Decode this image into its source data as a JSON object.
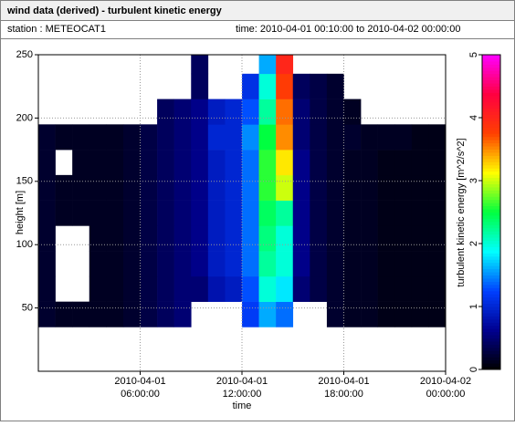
{
  "chart_data": {
    "type": "heatmap",
    "title": "wind data (derived) - turbulent kinetic energy",
    "station": "station : METEOCAT1",
    "period": "time: 2010-04-01 00:10:00 to 2010-04-02 00:00:00",
    "xlabel": "time",
    "ylabel": "height [m]",
    "colorbar_label": "turbulent kinetic energy [m^2/s^2]",
    "xlim": [
      "2010-04-01 00:00:00",
      "2010-04-02 00:00:00"
    ],
    "xticks": [
      "2010-04-01 06:00:00",
      "2010-04-01 12:00:00",
      "2010-04-01 18:00:00",
      "2010-04-02 00:00:00"
    ],
    "ylim": [
      0,
      250
    ],
    "yticks": [
      50,
      100,
      150,
      200,
      250
    ],
    "clim": [
      0,
      5
    ],
    "cticks": [
      0,
      1,
      2,
      3,
      4,
      5
    ],
    "colormap": [
      "#000000",
      "#00008f",
      "#0040ff",
      "#00ffff",
      "#00ff40",
      "#ffff00",
      "#ff4000",
      "#ff0040",
      "#ff00ff"
    ],
    "grid": true,
    "xbins": [
      "2010-04-01 00:00:00",
      "2010-04-01 01:00:00",
      "2010-04-01 02:00:00",
      "2010-04-01 03:00:00",
      "2010-04-01 04:00:00",
      "2010-04-01 05:00:00",
      "2010-04-01 06:00:00",
      "2010-04-01 07:00:00",
      "2010-04-01 08:00:00",
      "2010-04-01 09:00:00",
      "2010-04-01 10:00:00",
      "2010-04-01 11:00:00",
      "2010-04-01 12:00:00",
      "2010-04-01 13:00:00",
      "2010-04-01 14:00:00",
      "2010-04-01 15:00:00",
      "2010-04-01 16:00:00",
      "2010-04-01 17:00:00",
      "2010-04-01 18:00:00",
      "2010-04-01 19:00:00",
      "2010-04-01 20:00:00",
      "2010-04-01 21:00:00",
      "2010-04-01 22:00:00",
      "2010-04-01 23:00:00",
      "2010-04-02 00:00:00"
    ],
    "ybins": [
      35,
      55,
      75,
      95,
      115,
      135,
      155,
      175,
      195,
      215,
      235,
      255
    ],
    "z": [
      [
        0.2,
        0.15,
        0.15,
        0.15,
        0.15,
        0.2,
        0.3,
        0.4,
        0.5,
        null,
        null,
        null,
        1.2,
        1.6,
        1.4,
        null,
        null,
        0.2,
        0.15,
        0.15,
        0.1,
        0.1,
        0.1,
        0.1
      ],
      [
        0.2,
        null,
        null,
        0.15,
        0.15,
        0.2,
        0.3,
        0.4,
        0.5,
        0.5,
        0.8,
        0.9,
        1.3,
        2.0,
        1.8,
        0.5,
        0.3,
        0.2,
        0.15,
        0.15,
        0.1,
        0.1,
        0.1,
        0.1
      ],
      [
        0.2,
        null,
        null,
        0.15,
        0.15,
        0.2,
        0.3,
        0.4,
        0.5,
        0.6,
        0.9,
        1.0,
        1.4,
        2.2,
        2.0,
        0.6,
        0.3,
        0.2,
        0.15,
        0.15,
        0.1,
        0.1,
        0.1,
        0.1
      ],
      [
        0.2,
        null,
        null,
        0.15,
        0.15,
        0.2,
        0.3,
        0.4,
        0.5,
        0.6,
        0.9,
        1.0,
        1.4,
        2.3,
        2.0,
        0.6,
        0.3,
        0.2,
        0.15,
        0.15,
        0.1,
        0.1,
        0.1,
        0.1
      ],
      [
        0.2,
        0.15,
        0.15,
        0.15,
        0.15,
        0.2,
        0.3,
        0.4,
        0.5,
        0.6,
        0.9,
        1.0,
        1.4,
        2.4,
        2.2,
        0.6,
        0.3,
        0.2,
        0.15,
        0.15,
        0.1,
        0.1,
        0.1,
        0.1
      ],
      [
        0.2,
        0.15,
        0.15,
        0.15,
        0.15,
        0.2,
        0.3,
        0.4,
        0.5,
        0.6,
        0.9,
        1.0,
        1.4,
        2.6,
        3.0,
        0.6,
        0.3,
        0.2,
        0.15,
        0.15,
        0.1,
        0.1,
        0.1,
        0.1
      ],
      [
        0.2,
        null,
        0.15,
        0.15,
        0.15,
        0.2,
        0.3,
        0.4,
        0.5,
        0.6,
        0.9,
        1.0,
        1.4,
        2.6,
        3.2,
        0.6,
        0.3,
        0.2,
        0.15,
        0.15,
        0.1,
        0.1,
        0.1,
        0.1
      ],
      [
        0.2,
        0.15,
        0.15,
        0.15,
        0.15,
        0.2,
        0.3,
        0.4,
        0.5,
        0.6,
        1.0,
        1.0,
        1.5,
        2.5,
        3.5,
        0.5,
        0.3,
        0.2,
        0.2,
        0.15,
        0.15,
        0.15,
        0.1,
        0.1
      ],
      [
        null,
        null,
        null,
        null,
        null,
        null,
        null,
        0.4,
        0.5,
        0.6,
        0.9,
        1.0,
        1.3,
        2.2,
        3.6,
        0.5,
        0.3,
        0.2,
        0.15,
        null,
        null,
        null,
        null,
        null
      ],
      [
        null,
        null,
        null,
        null,
        null,
        null,
        null,
        null,
        null,
        0.4,
        null,
        null,
        1.1,
        2.0,
        3.8,
        0.4,
        0.3,
        0.2,
        null,
        null,
        null,
        null,
        null,
        null
      ],
      [
        null,
        null,
        null,
        null,
        null,
        null,
        null,
        null,
        null,
        0.4,
        null,
        null,
        null,
        1.6,
        4.0,
        null,
        null,
        null,
        null,
        null,
        null,
        null,
        null,
        null
      ]
    ]
  }
}
